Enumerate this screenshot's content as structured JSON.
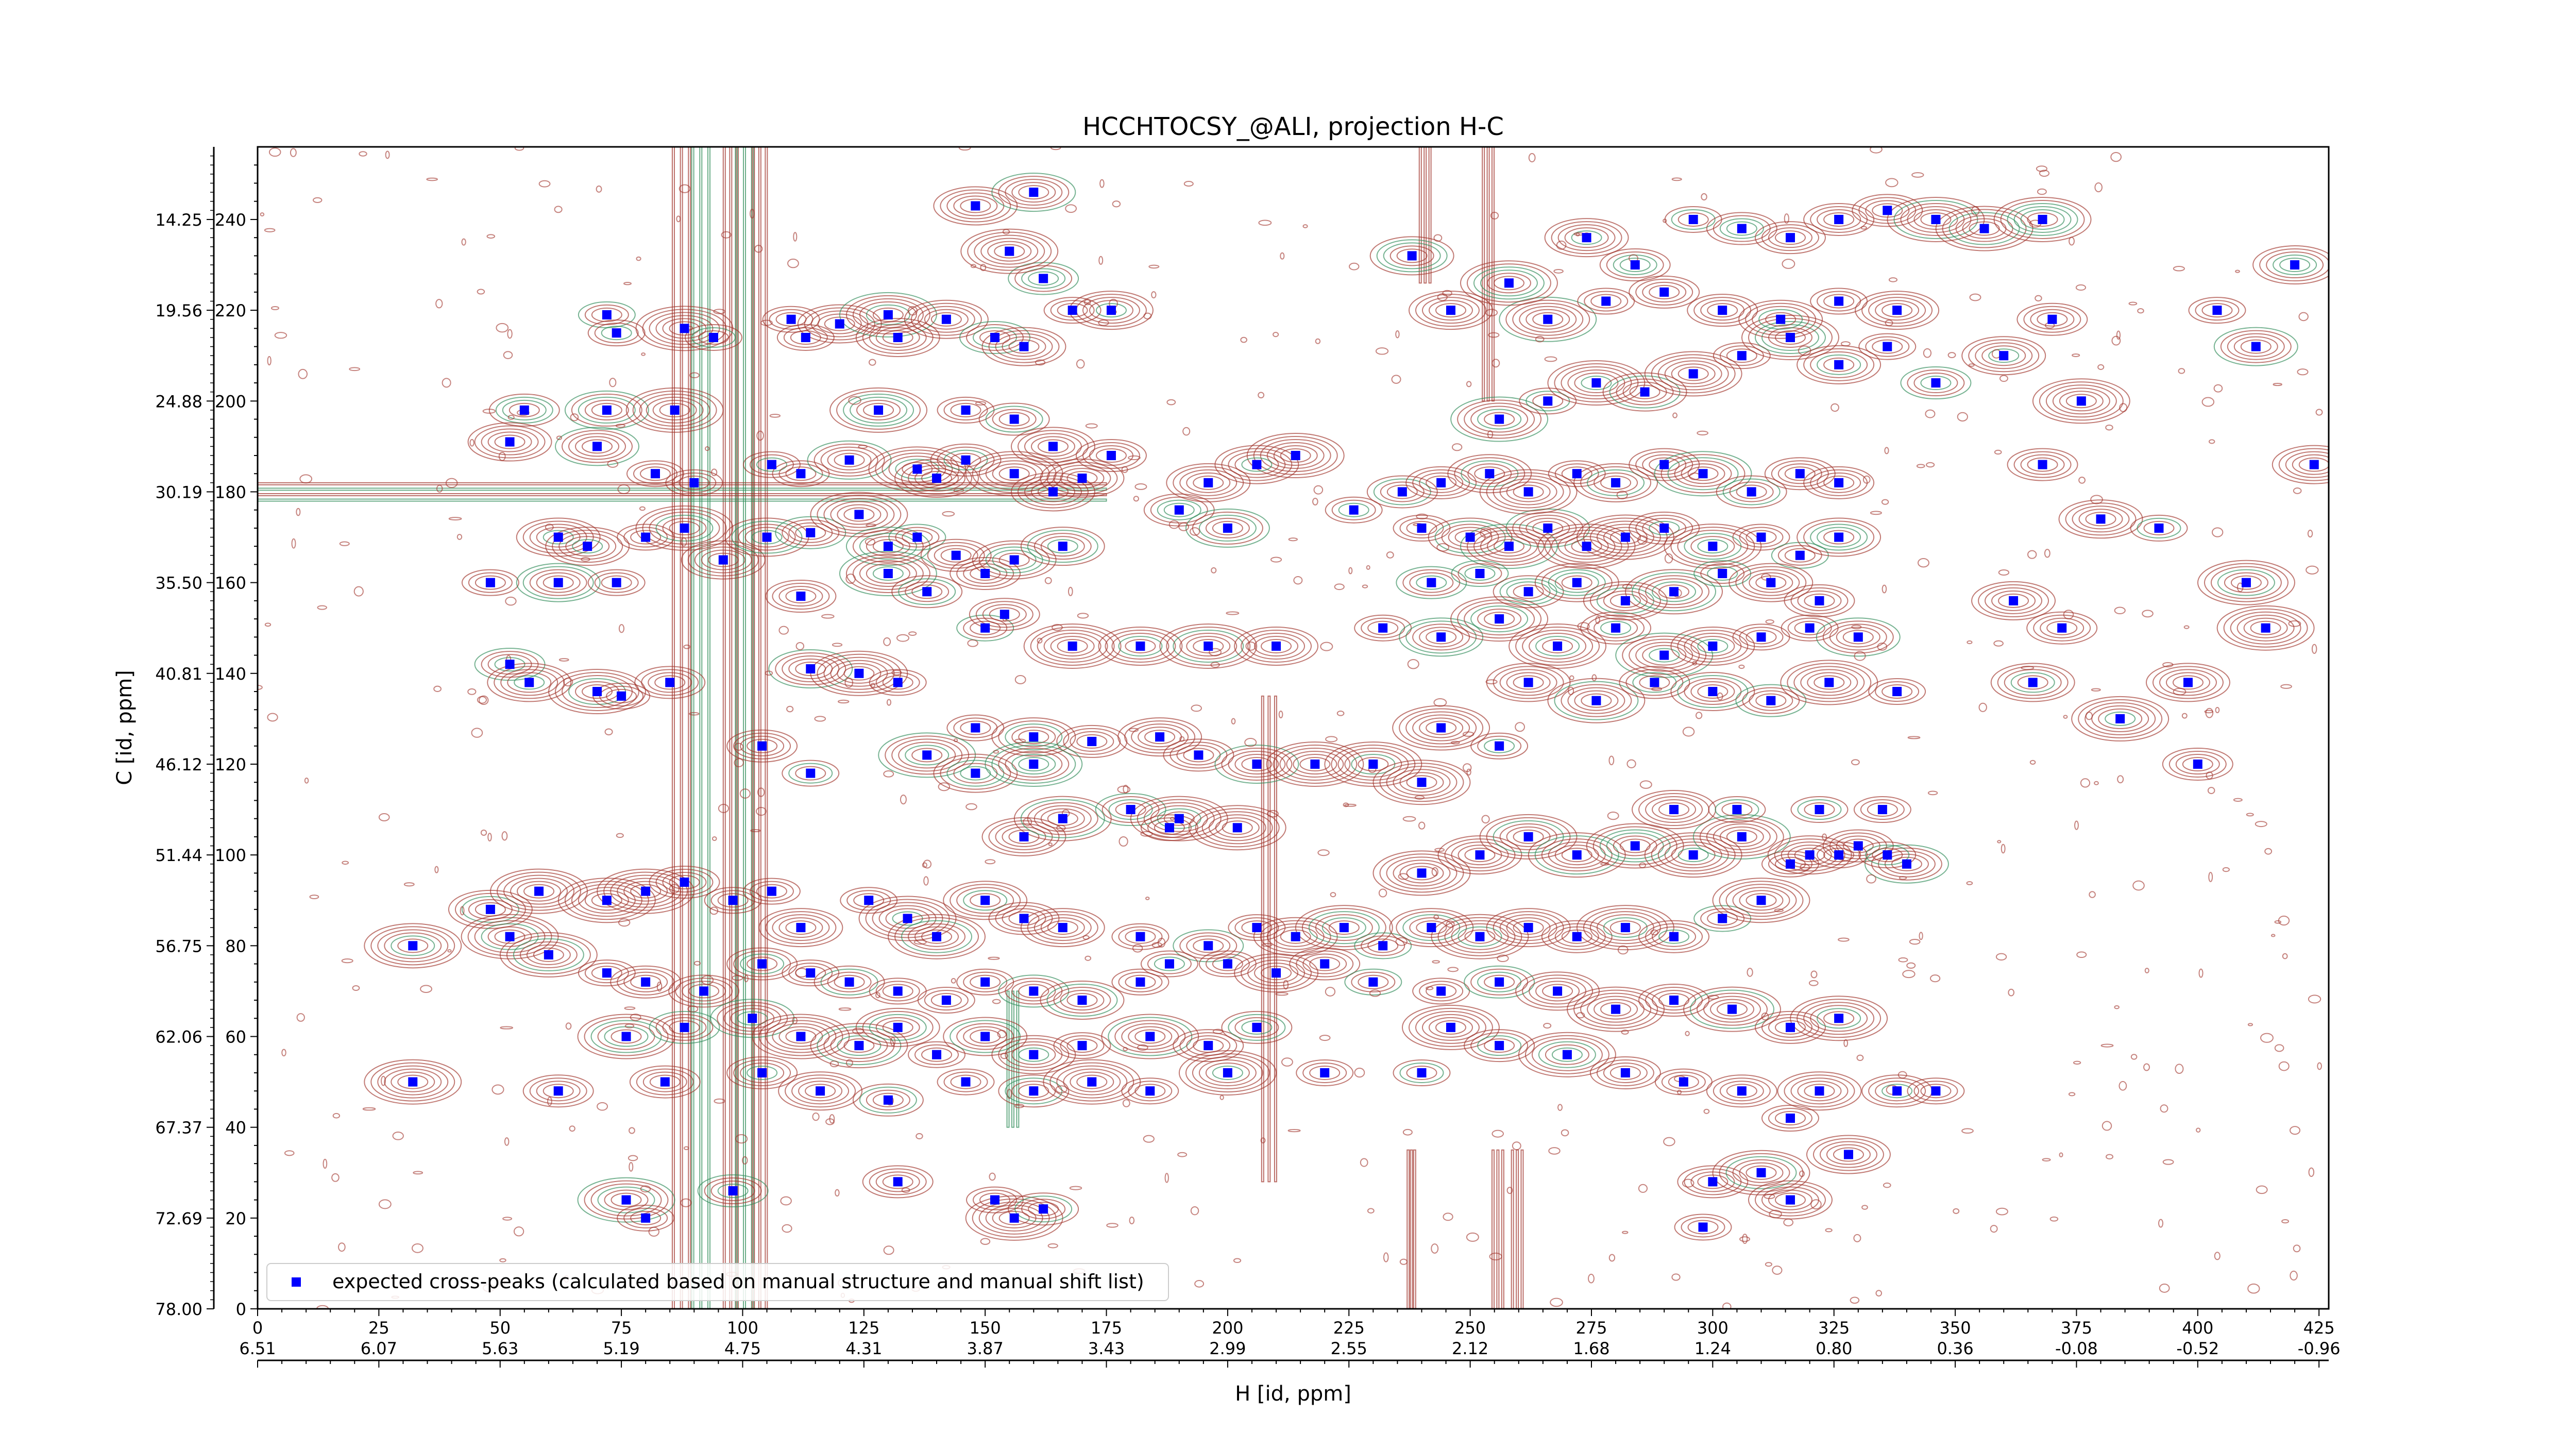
{
  "chart_data": {
    "type": "scatter",
    "title": "HCCHTOCSY_@ALI, projection H-C",
    "xlabel": "H [id, ppm]",
    "ylabel": "C [id, ppm]",
    "xlim": [
      0,
      427
    ],
    "ylim": [
      0,
      256
    ],
    "x_point_ticks": [
      "0",
      "25",
      "50",
      "75",
      "100",
      "125",
      "150",
      "175",
      "200",
      "225",
      "250",
      "275",
      "300",
      "325",
      "350",
      "375",
      "400",
      "425"
    ],
    "x_ppm_ticks": [
      "6.51",
      "6.07",
      "5.63",
      "5.19",
      "4.75",
      "4.31",
      "3.87",
      "3.43",
      "2.99",
      "2.55",
      "2.12",
      "1.68",
      "1.24",
      "0.80",
      "0.36",
      "-0.08",
      "-0.52",
      "-0.96"
    ],
    "y_point_ticks": [
      "0",
      "20",
      "40",
      "60",
      "80",
      "100",
      "120",
      "140",
      "160",
      "180",
      "200",
      "220",
      "240"
    ],
    "y_ppm_ticks": [
      "78.00",
      "72.69",
      "67.37",
      "62.06",
      "56.75",
      "51.44",
      "46.12",
      "40.81",
      "35.50",
      "30.19",
      "24.88",
      "19.56",
      "14.25"
    ],
    "legend": {
      "position": "lower-left",
      "label": "expected cross-peaks (calculated based on manual structure and manual shift list)"
    },
    "colors": {
      "positive_contours": "#a0322a",
      "negative_contours": "#2e8b57",
      "expected_peaks": "#0000ff"
    },
    "grid": false,
    "series": [
      {
        "name": "expected cross-peaks (calculated based on manual structure and manual shift list)",
        "points": [
          [
            72,
            219
          ],
          [
            74,
            215
          ],
          [
            88,
            216
          ],
          [
            94,
            214
          ],
          [
            110,
            218
          ],
          [
            113,
            214
          ],
          [
            120,
            217
          ],
          [
            130,
            219
          ],
          [
            132,
            214
          ],
          [
            142,
            218
          ],
          [
            152,
            214
          ],
          [
            158,
            212
          ],
          [
            162,
            227
          ],
          [
            168,
            220
          ],
          [
            176,
            220
          ],
          [
            155,
            233
          ],
          [
            148,
            243
          ],
          [
            160,
            246
          ],
          [
            55,
            198
          ],
          [
            72,
            198
          ],
          [
            86,
            198
          ],
          [
            128,
            198
          ],
          [
            146,
            198
          ],
          [
            156,
            196
          ],
          [
            164,
            190
          ],
          [
            176,
            188
          ],
          [
            52,
            191
          ],
          [
            70,
            190
          ],
          [
            82,
            184
          ],
          [
            90,
            182
          ],
          [
            106,
            186
          ],
          [
            112,
            184
          ],
          [
            122,
            187
          ],
          [
            136,
            185
          ],
          [
            140,
            183
          ],
          [
            146,
            187
          ],
          [
            156,
            184
          ],
          [
            164,
            180
          ],
          [
            170,
            183
          ],
          [
            62,
            170
          ],
          [
            68,
            168
          ],
          [
            80,
            170
          ],
          [
            88,
            172
          ],
          [
            96,
            165
          ],
          [
            105,
            170
          ],
          [
            114,
            171
          ],
          [
            124,
            175
          ],
          [
            130,
            168
          ],
          [
            136,
            170
          ],
          [
            144,
            166
          ],
          [
            150,
            162
          ],
          [
            156,
            165
          ],
          [
            166,
            168
          ],
          [
            48,
            160
          ],
          [
            62,
            160
          ],
          [
            74,
            160
          ],
          [
            112,
            157
          ],
          [
            130,
            162
          ],
          [
            138,
            158
          ],
          [
            150,
            150
          ],
          [
            154,
            153
          ],
          [
            168,
            146
          ],
          [
            182,
            146
          ],
          [
            196,
            146
          ],
          [
            210,
            146
          ],
          [
            52,
            142
          ],
          [
            56,
            138
          ],
          [
            70,
            136
          ],
          [
            75,
            135
          ],
          [
            85,
            138
          ],
          [
            114,
            141
          ],
          [
            124,
            140
          ],
          [
            132,
            138
          ],
          [
            148,
            128
          ],
          [
            160,
            126
          ],
          [
            172,
            125
          ],
          [
            186,
            126
          ],
          [
            194,
            122
          ],
          [
            206,
            120
          ],
          [
            218,
            120
          ],
          [
            104,
            124
          ],
          [
            114,
            118
          ],
          [
            138,
            122
          ],
          [
            148,
            118
          ],
          [
            160,
            120
          ],
          [
            180,
            110
          ],
          [
            190,
            108
          ],
          [
            202,
            106
          ],
          [
            158,
            104
          ],
          [
            166,
            108
          ],
          [
            188,
            106
          ],
          [
            230,
            120
          ],
          [
            240,
            116
          ],
          [
            244,
            128
          ],
          [
            256,
            124
          ],
          [
            48,
            88
          ],
          [
            52,
            82
          ],
          [
            58,
            92
          ],
          [
            72,
            90
          ],
          [
            80,
            92
          ],
          [
            88,
            94
          ],
          [
            98,
            90
          ],
          [
            106,
            92
          ],
          [
            112,
            84
          ],
          [
            126,
            90
          ],
          [
            134,
            86
          ],
          [
            140,
            82
          ],
          [
            150,
            90
          ],
          [
            158,
            86
          ],
          [
            166,
            84
          ],
          [
            32,
            80
          ],
          [
            60,
            78
          ],
          [
            72,
            74
          ],
          [
            80,
            72
          ],
          [
            92,
            70
          ],
          [
            104,
            76
          ],
          [
            114,
            74
          ],
          [
            122,
            72
          ],
          [
            132,
            70
          ],
          [
            142,
            68
          ],
          [
            150,
            72
          ],
          [
            160,
            70
          ],
          [
            170,
            68
          ],
          [
            182,
            72
          ],
          [
            76,
            60
          ],
          [
            88,
            62
          ],
          [
            102,
            64
          ],
          [
            112,
            60
          ],
          [
            124,
            58
          ],
          [
            132,
            62
          ],
          [
            140,
            56
          ],
          [
            150,
            60
          ],
          [
            160,
            56
          ],
          [
            170,
            58
          ],
          [
            184,
            60
          ],
          [
            196,
            58
          ],
          [
            206,
            62
          ],
          [
            32,
            50
          ],
          [
            62,
            48
          ],
          [
            84,
            50
          ],
          [
            104,
            52
          ],
          [
            116,
            48
          ],
          [
            130,
            46
          ],
          [
            146,
            50
          ],
          [
            160,
            48
          ],
          [
            172,
            50
          ],
          [
            184,
            48
          ],
          [
            200,
            52
          ],
          [
            220,
            52
          ],
          [
            240,
            52
          ],
          [
            76,
            24
          ],
          [
            98,
            26
          ],
          [
            132,
            28
          ],
          [
            152,
            24
          ],
          [
            156,
            20
          ],
          [
            162,
            22
          ],
          [
            80,
            20
          ],
          [
            182,
            82
          ],
          [
            196,
            80
          ],
          [
            206,
            84
          ],
          [
            214,
            82
          ],
          [
            224,
            84
          ],
          [
            232,
            80
          ],
          [
            242,
            84
          ],
          [
            252,
            82
          ],
          [
            262,
            84
          ],
          [
            272,
            82
          ],
          [
            282,
            84
          ],
          [
            292,
            82
          ],
          [
            302,
            86
          ],
          [
            310,
            90
          ],
          [
            320,
            100
          ],
          [
            330,
            102
          ],
          [
            340,
            98
          ],
          [
            188,
            76
          ],
          [
            200,
            76
          ],
          [
            210,
            74
          ],
          [
            220,
            76
          ],
          [
            230,
            72
          ],
          [
            244,
            70
          ],
          [
            256,
            72
          ],
          [
            268,
            70
          ],
          [
            280,
            66
          ],
          [
            292,
            68
          ],
          [
            304,
            66
          ],
          [
            316,
            62
          ],
          [
            326,
            64
          ],
          [
            240,
            96
          ],
          [
            252,
            100
          ],
          [
            262,
            104
          ],
          [
            272,
            100
          ],
          [
            284,
            102
          ],
          [
            296,
            100
          ],
          [
            306,
            104
          ],
          [
            316,
            98
          ],
          [
            326,
            100
          ],
          [
            336,
            100
          ],
          [
            292,
            110
          ],
          [
            305,
            110
          ],
          [
            322,
            110
          ],
          [
            335,
            110
          ],
          [
            246,
            62
          ],
          [
            256,
            58
          ],
          [
            270,
            56
          ],
          [
            282,
            52
          ],
          [
            294,
            50
          ],
          [
            306,
            48
          ],
          [
            316,
            42
          ],
          [
            322,
            48
          ],
          [
            338,
            48
          ],
          [
            346,
            48
          ],
          [
            328,
            34
          ],
          [
            300,
            28
          ],
          [
            310,
            30
          ],
          [
            316,
            24
          ],
          [
            298,
            18
          ],
          [
            240,
            172
          ],
          [
            250,
            170
          ],
          [
            258,
            168
          ],
          [
            266,
            172
          ],
          [
            274,
            168
          ],
          [
            282,
            170
          ],
          [
            290,
            172
          ],
          [
            300,
            168
          ],
          [
            310,
            170
          ],
          [
            318,
            166
          ],
          [
            326,
            170
          ],
          [
            236,
            180
          ],
          [
            244,
            182
          ],
          [
            254,
            184
          ],
          [
            262,
            180
          ],
          [
            272,
            184
          ],
          [
            280,
            182
          ],
          [
            290,
            186
          ],
          [
            298,
            184
          ],
          [
            308,
            180
          ],
          [
            318,
            184
          ],
          [
            326,
            182
          ],
          [
            242,
            160
          ],
          [
            252,
            162
          ],
          [
            262,
            158
          ],
          [
            272,
            160
          ],
          [
            282,
            156
          ],
          [
            292,
            158
          ],
          [
            302,
            162
          ],
          [
            312,
            160
          ],
          [
            322,
            156
          ],
          [
            226,
            176
          ],
          [
            214,
            188
          ],
          [
            206,
            186
          ],
          [
            196,
            182
          ],
          [
            190,
            176
          ],
          [
            200,
            172
          ],
          [
            232,
            150
          ],
          [
            244,
            148
          ],
          [
            256,
            152
          ],
          [
            268,
            146
          ],
          [
            280,
            150
          ],
          [
            290,
            144
          ],
          [
            300,
            146
          ],
          [
            310,
            148
          ],
          [
            320,
            150
          ],
          [
            330,
            148
          ],
          [
            262,
            138
          ],
          [
            276,
            134
          ],
          [
            288,
            138
          ],
          [
            300,
            136
          ],
          [
            312,
            134
          ],
          [
            324,
            138
          ],
          [
            338,
            136
          ],
          [
            256,
            196
          ],
          [
            266,
            200
          ],
          [
            276,
            204
          ],
          [
            286,
            202
          ],
          [
            296,
            206
          ],
          [
            306,
            210
          ],
          [
            316,
            214
          ],
          [
            326,
            208
          ],
          [
            336,
            212
          ],
          [
            346,
            204
          ],
          [
            266,
            218
          ],
          [
            278,
            222
          ],
          [
            290,
            224
          ],
          [
            302,
            220
          ],
          [
            314,
            218
          ],
          [
            326,
            222
          ],
          [
            338,
            220
          ],
          [
            296,
            240
          ],
          [
            306,
            238
          ],
          [
            316,
            236
          ],
          [
            326,
            240
          ],
          [
            336,
            242
          ],
          [
            346,
            240
          ],
          [
            356,
            238
          ],
          [
            368,
            240
          ],
          [
            238,
            232
          ],
          [
            246,
            220
          ],
          [
            258,
            226
          ],
          [
            274,
            236
          ],
          [
            284,
            230
          ],
          [
            360,
            210
          ],
          [
            370,
            218
          ],
          [
            376,
            200
          ],
          [
            368,
            186
          ],
          [
            380,
            174
          ],
          [
            392,
            172
          ],
          [
            362,
            156
          ],
          [
            372,
            150
          ],
          [
            366,
            138
          ],
          [
            384,
            130
          ],
          [
            398,
            138
          ],
          [
            404,
            220
          ],
          [
            412,
            212
          ],
          [
            420,
            230
          ],
          [
            424,
            186
          ],
          [
            410,
            160
          ],
          [
            414,
            150
          ],
          [
            400,
            120
          ]
        ]
      }
    ]
  }
}
